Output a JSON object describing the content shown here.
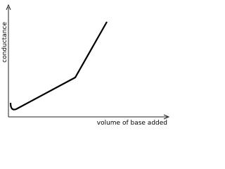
{
  "axes": {
    "y_label": "conductance",
    "x_label": "volume of base added"
  }
}
